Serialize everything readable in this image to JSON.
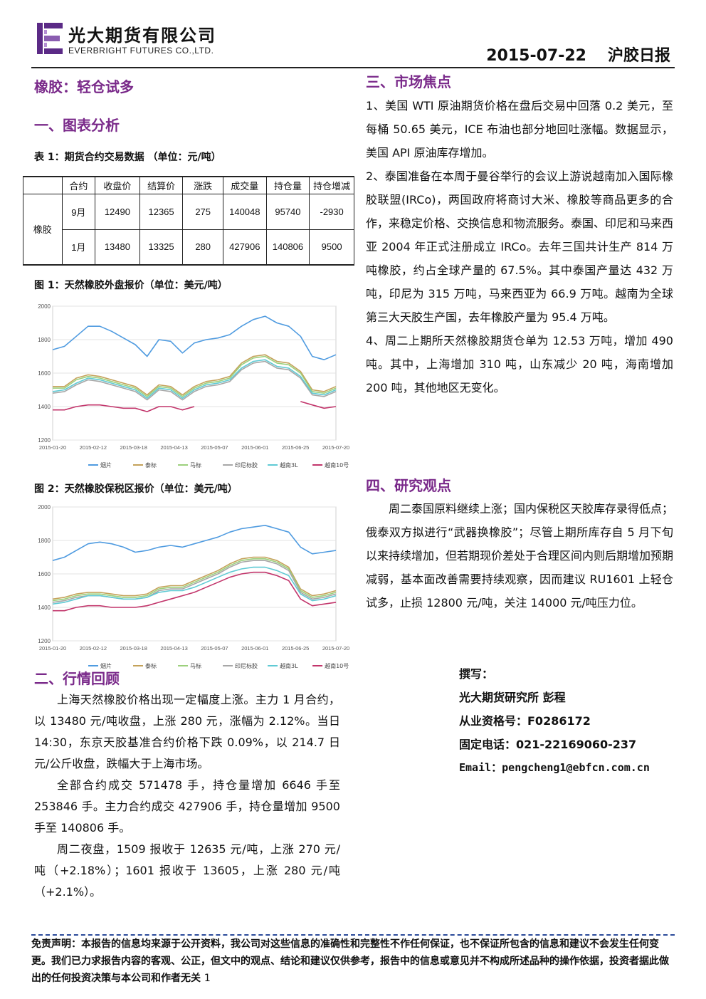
{
  "header": {
    "company_cn": "光大期货有限公司",
    "company_en": "EVERBRIGHT FUTURES CO.,LTD.",
    "date": "2015-07-22",
    "report_name": "沪胶日报",
    "brand_color": "#5b2a86"
  },
  "title": "橡胶：轻仓试多",
  "sections": {
    "chart_analysis": "一、图表分析",
    "market_review": "二、行情回顾",
    "market_focus": "三、市场焦点",
    "research_view": "四、研究观点"
  },
  "table1": {
    "caption": "表 1：期货合约交易数据 （单位：元/吨）",
    "headers": [
      "",
      "合约",
      "收盘价",
      "结算价",
      "涨跌",
      "成交量",
      "持仓量",
      "持仓增减"
    ],
    "product": "橡胶",
    "rows": [
      [
        "9月",
        "12490",
        "12365",
        "275",
        "140048",
        "95740",
        "-2930"
      ],
      [
        "1月",
        "13480",
        "13325",
        "280",
        "427906",
        "140806",
        "9500"
      ]
    ]
  },
  "fig1_caption": "图 1：天然橡胶外盘报价（单位：美元/吨）",
  "fig2_caption": "图 2：天然橡胶保税区报价（单位：美元/吨）",
  "chart_data": [
    {
      "type": "line",
      "title": "",
      "yticks": [
        "2000",
        "1800",
        "1600",
        "1400",
        "1200"
      ],
      "ylim": [
        1200,
        2000
      ],
      "x_ticks": [
        "2015-01-20",
        "2015-02-12",
        "2015-03-18",
        "2015-04-13",
        "2015-05-07",
        "2015-06-01",
        "2015-06-25",
        "2015-07-20"
      ],
      "series": [
        {
          "name": "烟片",
          "color": "#4f9be0",
          "values": [
            1740,
            1760,
            1820,
            1880,
            1880,
            1850,
            1810,
            1770,
            1700,
            1800,
            1790,
            1720,
            1780,
            1800,
            1810,
            1830,
            1880,
            1920,
            1940,
            1900,
            1880,
            1820,
            1700,
            1680,
            1710
          ]
        },
        {
          "name": "泰标",
          "color": "#c4a25a",
          "values": [
            1520,
            1520,
            1570,
            1590,
            1580,
            1560,
            1540,
            1520,
            1470,
            1530,
            1520,
            1470,
            1520,
            1550,
            1560,
            1580,
            1660,
            1700,
            1710,
            1670,
            1660,
            1610,
            1500,
            1490,
            1520
          ]
        },
        {
          "name": "马标",
          "color": "#9cd07c",
          "values": [
            1510,
            1510,
            1560,
            1580,
            1570,
            1550,
            1530,
            1510,
            1460,
            1520,
            1510,
            1460,
            1510,
            1540,
            1550,
            1570,
            1650,
            1690,
            1700,
            1660,
            1650,
            1600,
            1490,
            1480,
            1510
          ]
        },
        {
          "name": "印尼标胶",
          "color": "#a7a7a7",
          "values": [
            1480,
            1490,
            1530,
            1560,
            1550,
            1530,
            1510,
            1490,
            1440,
            1500,
            1490,
            1440,
            1490,
            1520,
            1530,
            1550,
            1620,
            1660,
            1670,
            1630,
            1620,
            1570,
            1470,
            1460,
            1490
          ]
        },
        {
          "name": "越南3L",
          "color": "#5fcad4",
          "values": [
            1490,
            1500,
            1540,
            1570,
            1560,
            1540,
            1520,
            1500,
            1450,
            1510,
            1500,
            1450,
            1500,
            1530,
            1540,
            1560,
            1630,
            1670,
            1680,
            1640,
            1630,
            1580,
            1480,
            1470,
            1500
          ]
        },
        {
          "name": "越南10号",
          "color": "#c2356b",
          "values": [
            1380,
            1380,
            1400,
            1410,
            1410,
            1400,
            1390,
            1390,
            1370,
            1400,
            1400,
            1380,
            1400,
            null,
            null,
            null,
            null,
            null,
            null,
            null,
            null,
            1430,
            1410,
            1390,
            1400
          ]
        }
      ]
    },
    {
      "type": "line",
      "title": "",
      "yticks": [
        "2000",
        "1800",
        "1600",
        "1400",
        "1200"
      ],
      "ylim": [
        1200,
        2000
      ],
      "x_ticks": [
        "2015-01-20",
        "2015-02-12",
        "2015-03-18",
        "2015-04-13",
        "2015-05-07",
        "2015-06-01",
        "2015-06-25",
        "2015-07-20"
      ],
      "series": [
        {
          "name": "烟片",
          "color": "#4f9be0",
          "values": [
            1680,
            1700,
            1740,
            1780,
            1790,
            1780,
            1760,
            1730,
            1740,
            1760,
            1770,
            1760,
            1780,
            1800,
            1820,
            1850,
            1870,
            1880,
            1890,
            1870,
            1850,
            1760,
            1720,
            1730,
            1740
          ]
        },
        {
          "name": "泰标",
          "color": "#c4a25a",
          "values": [
            1450,
            1460,
            1480,
            1490,
            1490,
            1480,
            1470,
            1470,
            1480,
            1520,
            1530,
            1530,
            1560,
            1590,
            1620,
            1660,
            1690,
            1700,
            1700,
            1680,
            1640,
            1510,
            1470,
            1480,
            1500
          ]
        },
        {
          "name": "马标",
          "color": "#9cd07c",
          "values": [
            1440,
            1450,
            1470,
            1480,
            1480,
            1470,
            1460,
            1460,
            1470,
            1510,
            1520,
            1520,
            1550,
            1580,
            1610,
            1650,
            1680,
            1690,
            1690,
            1670,
            1630,
            1500,
            1460,
            1470,
            1490
          ]
        },
        {
          "name": "印尼标胶",
          "color": "#a7a7a7",
          "values": [
            1430,
            1440,
            1460,
            1470,
            1470,
            1460,
            1450,
            1450,
            1460,
            1500,
            1510,
            1510,
            1540,
            1570,
            1600,
            1640,
            1670,
            1680,
            1680,
            1660,
            1620,
            1490,
            1450,
            1460,
            1480
          ]
        },
        {
          "name": "越南3L",
          "color": "#5fcad4",
          "values": [
            1420,
            1430,
            1450,
            1470,
            1470,
            1460,
            1450,
            1450,
            1460,
            1490,
            1500,
            1500,
            1520,
            1550,
            1580,
            1610,
            1630,
            1640,
            1640,
            1620,
            1590,
            1480,
            1440,
            1450,
            1470
          ]
        },
        {
          "name": "越南10号",
          "color": "#c2356b",
          "values": [
            1380,
            1380,
            1400,
            1410,
            1410,
            1400,
            1400,
            1400,
            1410,
            1430,
            1450,
            1470,
            1490,
            1520,
            1550,
            1580,
            1600,
            1610,
            1610,
            1590,
            1560,
            1450,
            1410,
            1420,
            1430
          ]
        }
      ]
    }
  ],
  "market_review": {
    "paragraphs": [
      "上海天然橡胶价格出现一定幅度上涨。主力 1 月合约，以 13480 元/吨收盘，上涨 280 元，涨幅为 2.12%。当日 14:30，东京天胶基准合约价格下跌 0.09%，以 214.7 日元/公斤收盘，跌幅大于上海市场。",
      "全部合约成交 571478 手，持仓量增加 6646 手至 253846 手。主力合约成交 427906 手，持仓量增加 9500 手至 140806 手。",
      "周二夜盘，1509 报收于 12635 元/吨，上涨 270 元/吨（+2.18%）；1601 报收于 13605，上涨 280 元/吨（+2.1%）。"
    ]
  },
  "market_focus": {
    "items": [
      "1、美国 WTI 原油期货价格在盘后交易中回落 0.2 美元，至每桶 50.65 美元，ICE 布油也部分地回吐涨幅。数据显示，美国 API 原油库存增加。",
      "2、泰国准备在本周于曼谷举行的会议上游说越南加入国际橡胶联盟(IRCo)，两国政府将商讨大米、橡胶等商品更多的合作，来稳定价格、交换信息和物流服务。泰国、印尼和马来西亚 2004 年正式注册成立 IRCo。去年三国共计生产 814 万吨橡胶，约占全球产量的 67.5%。其中泰国产量达 432 万吨，印尼为 315 万吨，马来西亚为 66.9 万吨。越南为全球第三大天胶生产国，去年橡胶产量为 95.4 万吨。",
      "4、周二上期所天然橡胶期货仓单为 12.53 万吨，增加 490 吨。其中，上海增加 310 吨，山东减少 20 吨，海南增加 200 吨，其他地区无变化。"
    ]
  },
  "research_view": {
    "text": "周二泰国原料继续上涨；国内保税区天胶库存录得低点；俄泰双方拟进行“武器换橡胶”；尽管上期所库存自 5 月下旬以来持续增加，但若期现价差处于合理区间内则后期增加预期减弱，基本面改善需要持续观察，因而建议 RU1601 上轻仓试多，止损 12800 元/吨，关注 14000 元/吨压力位。"
  },
  "author": {
    "label": "撰写：",
    "name": "光大期货研究所 彭程",
    "license": "从业资格号：F0286172",
    "phone": "固定电话：021-22169060-237",
    "email": "Email：pengcheng1@ebfcn.com.cn"
  },
  "footer": {
    "disclaimer": "免责声明：本报告的信息均来源于公开资料，我公司对这些信息的准确性和完整性不作任何保证，也不保证所包含的信息和建议不会发生任何变更。我们已力求报告内容的客观、公正，但文中的观点、结论和建议仅供参考，报告中的信息或意见并不构成所述品种的操作依据，投资者据此做出的任何投资决策与本公司和作者无关",
    "page_number": "1"
  }
}
